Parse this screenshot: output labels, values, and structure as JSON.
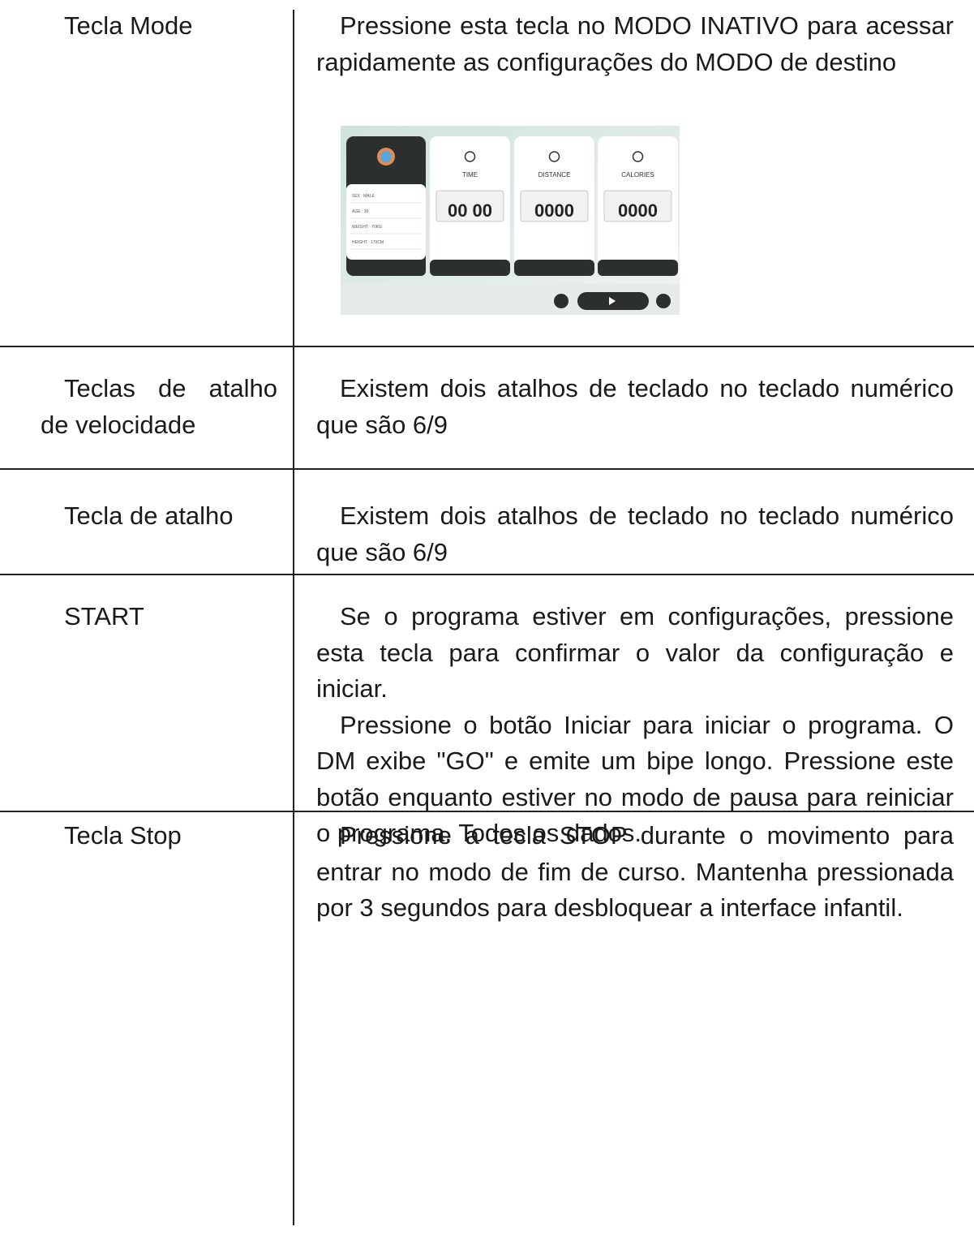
{
  "table": {
    "rows": [
      {
        "key": "Tecla Mode",
        "description": [
          "Pressione esta tecla no MODO INATIVO para acessar rapidamente as configurações do MODO de destino"
        ]
      },
      {
        "key": "Teclas de atalho de velocidade",
        "description": [
          "Existem dois atalhos de teclado no teclado numérico que são 6/9"
        ]
      },
      {
        "key": "Tecla de atalho",
        "description": [
          "Existem dois atalhos de teclado no teclado numérico que são 6/9"
        ]
      },
      {
        "key": "START",
        "description": [
          "Se o programa estiver em configurações, pressione esta tecla para confirmar o valor da configuração e iniciar.",
          "Pressione o botão Iniciar para iniciar o programa. O DM exibe \"GO\" e emite um bipe longo. Pressione este botão enquanto estiver no modo de pausa para reiniciar o programa. Todos os dados."
        ]
      },
      {
        "key": "Tecla Stop",
        "description": [
          "Pressione a tecla STOP durante o movimento para entrar no modo de fim de curso. Mantenha pressionada por 3 segundos para desbloquear a interface infantil."
        ]
      }
    ]
  },
  "screen": {
    "profile": [
      "SEX : MALE",
      "AGE : 30",
      "WEIGHT : 70KG",
      "HEIGHT : 170CM"
    ],
    "cards": [
      {
        "label": "TIME",
        "digits": "00 00"
      },
      {
        "label": "DISTANCE",
        "digits": "0000"
      },
      {
        "label": "CALORIES",
        "digits": "0000"
      }
    ]
  }
}
